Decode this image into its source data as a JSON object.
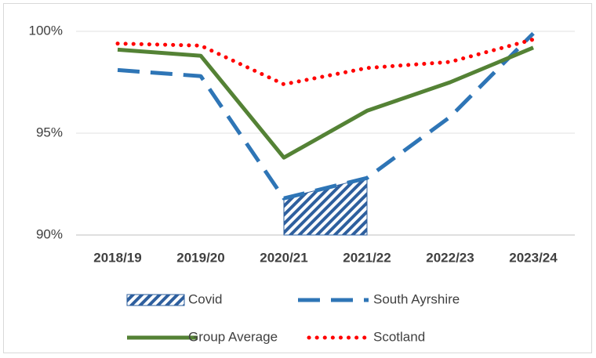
{
  "chart_data": {
    "type": "line",
    "categories": [
      "2018/19",
      "2019/20",
      "2020/21",
      "2021/22",
      "2022/23",
      "2023/24"
    ],
    "series": [
      {
        "name": "Covid",
        "color": "#2e5f9e",
        "style": "hatch",
        "values": [
          null,
          null,
          91.8,
          92.8,
          null,
          null
        ]
      },
      {
        "name": "South Ayrshire",
        "color": "#2e75b6",
        "style": "dashed",
        "values": [
          98.1,
          97.8,
          91.8,
          92.8,
          95.8,
          99.9
        ]
      },
      {
        "name": "Group Average",
        "color": "#548235",
        "style": "solid",
        "values": [
          99.1,
          98.8,
          93.8,
          96.1,
          97.5,
          99.2
        ]
      },
      {
        "name": "Scotland",
        "color": "#ff0000",
        "style": "dotted",
        "values": [
          99.4,
          99.3,
          97.4,
          98.2,
          98.5,
          99.6
        ]
      }
    ],
    "ylim": [
      90,
      100
    ],
    "yticks": [
      {
        "value": 90,
        "label": "90%"
      },
      {
        "value": 95,
        "label": "95%"
      },
      {
        "value": 100,
        "label": "100%"
      }
    ],
    "grid": true,
    "legend": "bottom"
  }
}
